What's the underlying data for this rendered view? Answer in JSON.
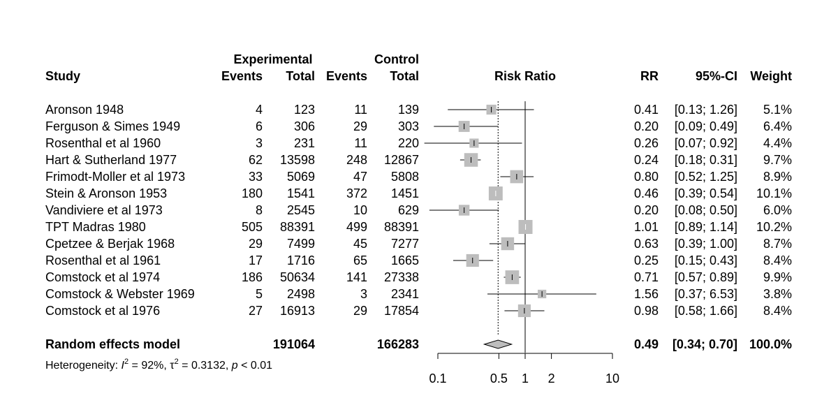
{
  "chart_data": {
    "type": "forest",
    "title": "Risk Ratio",
    "headers": {
      "study": "Study",
      "experimental": "Experimental",
      "control": "Control",
      "events": "Events",
      "total": "Total",
      "rr": "RR",
      "ci": "95%-CI",
      "weight": "Weight"
    },
    "studies": [
      {
        "name": "Aronson 1948",
        "e_events": "4",
        "e_total": "123",
        "c_events": "11",
        "c_total": "139",
        "rr": 0.41,
        "lower": 0.13,
        "upper": 1.26,
        "rr_text": "0.41",
        "ci_text": "[0.13; 1.26]",
        "weight_text": "5.1%",
        "weight": 5.1
      },
      {
        "name": "Ferguson & Simes 1949",
        "e_events": "6",
        "e_total": "306",
        "c_events": "29",
        "c_total": "303",
        "rr": 0.2,
        "lower": 0.09,
        "upper": 0.49,
        "rr_text": "0.20",
        "ci_text": "[0.09; 0.49]",
        "weight_text": "6.4%",
        "weight": 6.4
      },
      {
        "name": "Rosenthal et al 1960",
        "e_events": "3",
        "e_total": "231",
        "c_events": "11",
        "c_total": "220",
        "rr": 0.26,
        "lower": 0.07,
        "upper": 0.92,
        "rr_text": "0.26",
        "ci_text": "[0.07; 0.92]",
        "weight_text": "4.4%",
        "weight": 4.4
      },
      {
        "name": "Hart & Sutherland 1977",
        "e_events": "62",
        "e_total": "13598",
        "c_events": "248",
        "c_total": "12867",
        "rr": 0.24,
        "lower": 0.18,
        "upper": 0.31,
        "rr_text": "0.24",
        "ci_text": "[0.18; 0.31]",
        "weight_text": "9.7%",
        "weight": 9.7
      },
      {
        "name": "Frimodt-Moller et al 1973",
        "e_events": "33",
        "e_total": "5069",
        "c_events": "47",
        "c_total": "5808",
        "rr": 0.8,
        "lower": 0.52,
        "upper": 1.25,
        "rr_text": "0.80",
        "ci_text": "[0.52; 1.25]",
        "weight_text": "8.9%",
        "weight": 8.9
      },
      {
        "name": "Stein & Aronson 1953",
        "e_events": "180",
        "e_total": "1541",
        "c_events": "372",
        "c_total": "1451",
        "rr": 0.46,
        "lower": 0.39,
        "upper": 0.54,
        "rr_text": "0.46",
        "ci_text": "[0.39; 0.54]",
        "weight_text": "10.1%",
        "weight": 10.1
      },
      {
        "name": "Vandiviere et al 1973",
        "e_events": "8",
        "e_total": "2545",
        "c_events": "10",
        "c_total": "629",
        "rr": 0.2,
        "lower": 0.08,
        "upper": 0.5,
        "rr_text": "0.20",
        "ci_text": "[0.08; 0.50]",
        "weight_text": "6.0%",
        "weight": 6.0
      },
      {
        "name": "TPT Madras 1980",
        "e_events": "505",
        "e_total": "88391",
        "c_events": "499",
        "c_total": "88391",
        "rr": 1.01,
        "lower": 0.89,
        "upper": 1.14,
        "rr_text": "1.01",
        "ci_text": "[0.89; 1.14]",
        "weight_text": "10.2%",
        "weight": 10.2
      },
      {
        "name": "Cpetzee & Berjak 1968",
        "e_events": "29",
        "e_total": "7499",
        "c_events": "45",
        "c_total": "7277",
        "rr": 0.63,
        "lower": 0.39,
        "upper": 1.0,
        "rr_text": "0.63",
        "ci_text": "[0.39; 1.00]",
        "weight_text": "8.7%",
        "weight": 8.7
      },
      {
        "name": "Rosenthal et al 1961",
        "e_events": "17",
        "e_total": "1716",
        "c_events": "65",
        "c_total": "1665",
        "rr": 0.25,
        "lower": 0.15,
        "upper": 0.43,
        "rr_text": "0.25",
        "ci_text": "[0.15; 0.43]",
        "weight_text": "8.4%",
        "weight": 8.4
      },
      {
        "name": "Comstock et al 1974",
        "e_events": "186",
        "e_total": "50634",
        "c_events": "141",
        "c_total": "27338",
        "rr": 0.71,
        "lower": 0.57,
        "upper": 0.89,
        "rr_text": "0.71",
        "ci_text": "[0.57; 0.89]",
        "weight_text": "9.9%",
        "weight": 9.9
      },
      {
        "name": "Comstock & Webster 1969",
        "e_events": "5",
        "e_total": "2498",
        "c_events": "3",
        "c_total": "2341",
        "rr": 1.56,
        "lower": 0.37,
        "upper": 6.53,
        "rr_text": "1.56",
        "ci_text": "[0.37; 6.53]",
        "weight_text": "3.8%",
        "weight": 3.8
      },
      {
        "name": "Comstock et al 1976",
        "e_events": "27",
        "e_total": "16913",
        "c_events": "29",
        "c_total": "17854",
        "rr": 0.98,
        "lower": 0.58,
        "upper": 1.66,
        "rr_text": "0.98",
        "ci_text": "[0.58; 1.66]",
        "weight_text": "8.4%",
        "weight": 8.4
      }
    ],
    "pooled": {
      "name": "Random effects model",
      "e_total": "191064",
      "c_total": "166283",
      "rr": 0.49,
      "lower": 0.34,
      "upper": 0.7,
      "rr_text": "0.49",
      "ci_text": "[0.34; 0.70]",
      "weight_text": "100.0%"
    },
    "heterogeneity": {
      "label": "Heterogeneity: ",
      "i2_symbol": "I",
      "i2_value": " = 92%, ",
      "tau_symbol": "τ",
      "tau_value": " = 0.3132, ",
      "p_symbol": "p",
      "p_value": " < 0.01",
      "sup": "2"
    },
    "axis": {
      "scale": "log",
      "xlim": [
        0.1,
        10
      ],
      "ticks": [
        0.1,
        0.5,
        1,
        2,
        10
      ],
      "tick_labels": [
        "0.1",
        "0.5",
        "1",
        "2",
        "10"
      ],
      "reference_line": 1
    }
  }
}
